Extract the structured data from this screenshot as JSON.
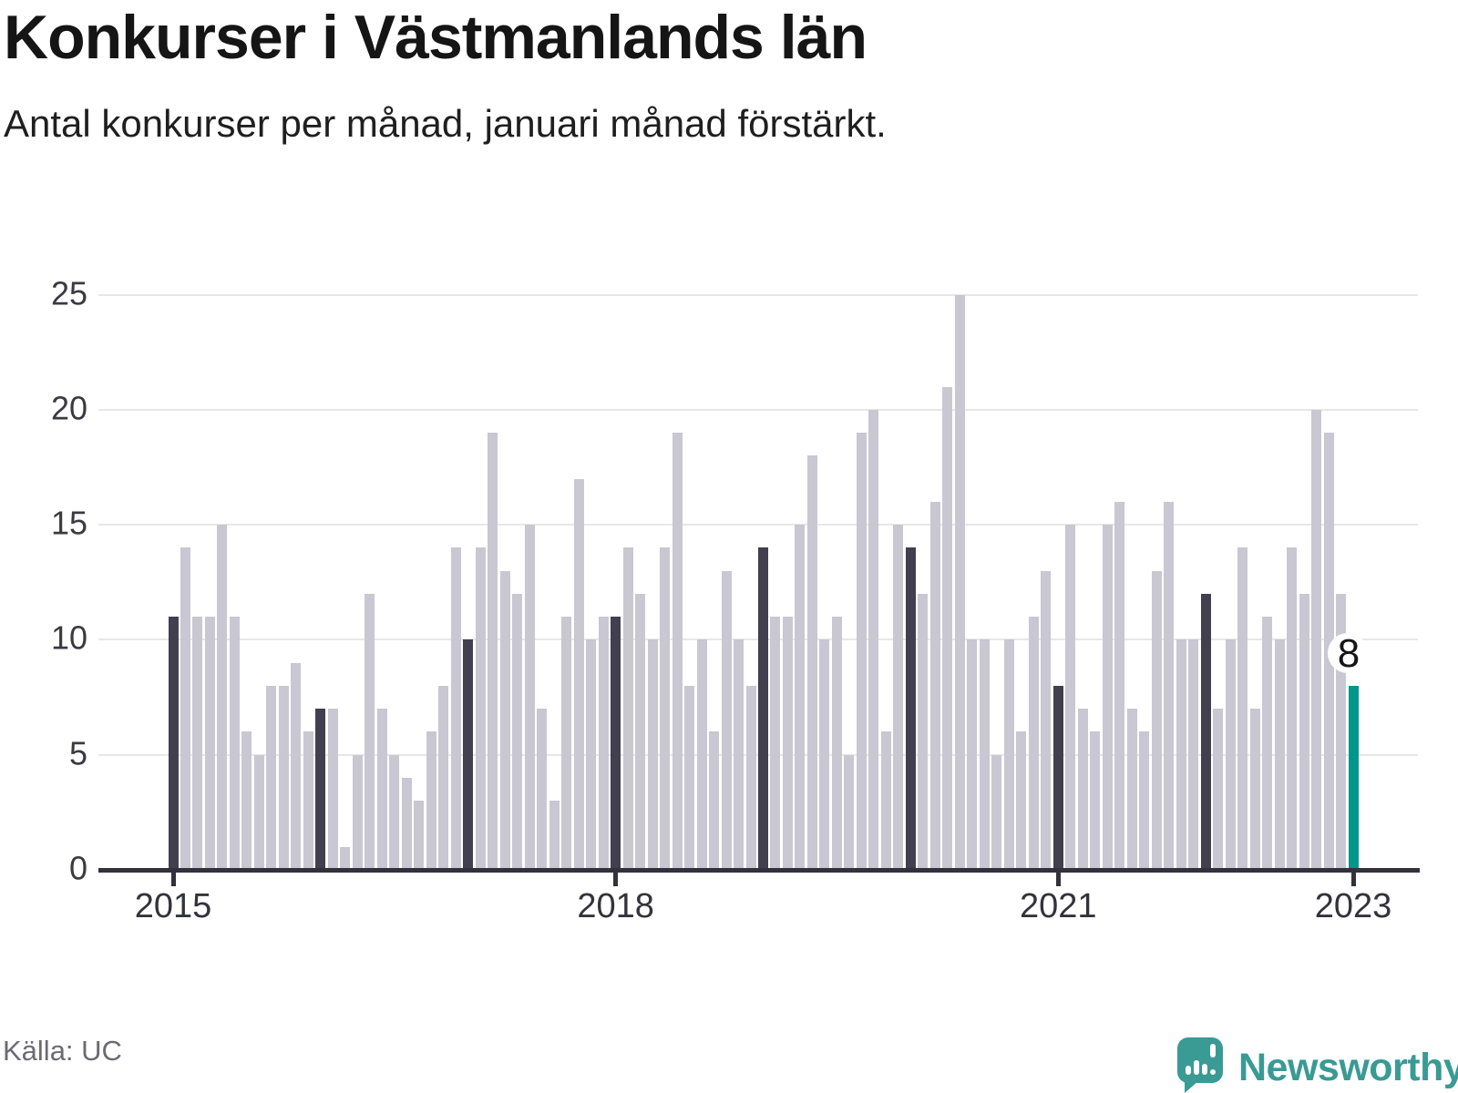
{
  "header": {
    "title": "Konkurser i Västmanlands län",
    "subtitle": "Antal konkurser per månad, januari månad förstärkt."
  },
  "footer": {
    "source": "Källa: UC",
    "brand": "Newsworthy"
  },
  "colors": {
    "bar_default": "#c9c7d2",
    "bar_january": "#42404f",
    "bar_latest": "#00968c",
    "axis_line": "#32313c",
    "gridline": "#e7e7e9",
    "brand_teal": "#3a9a94"
  },
  "chart_data": {
    "type": "bar",
    "title": "Konkurser i Västmanlands län",
    "subtitle": "Antal konkurser per månad, januari månad förstärkt.",
    "xlabel": "",
    "ylabel": "",
    "x_start_month": "2015-01",
    "x_end_month": "2023-01",
    "ylim": [
      0,
      25
    ],
    "yticks": [
      0,
      5,
      10,
      15,
      20,
      25
    ],
    "grid": "horizontal",
    "x_tick_labels": [
      "2015",
      "2018",
      "2021",
      "2023"
    ],
    "x_tick_month_indices": [
      0,
      36,
      72,
      96
    ],
    "highlight": {
      "january_bars": "dark",
      "latest_bar": "teal"
    },
    "annotation": {
      "month": "2023-01",
      "label": "8"
    },
    "series": [
      {
        "name": "Antal konkurser per månad",
        "year_values": {
          "2015": [
            11,
            14,
            11,
            11,
            15,
            11,
            6,
            5,
            8,
            8,
            9,
            6
          ],
          "2016": [
            7,
            7,
            1,
            5,
            12,
            7,
            5,
            4,
            3,
            6,
            8,
            14
          ],
          "2017": [
            10,
            14,
            19,
            13,
            12,
            15,
            7,
            3,
            11,
            17,
            10,
            11
          ],
          "2018": [
            11,
            14,
            12,
            10,
            14,
            19,
            8,
            10,
            6,
            13,
            10,
            8
          ],
          "2019": [
            14,
            11,
            11,
            15,
            18,
            10,
            11,
            5,
            19,
            20,
            6,
            15
          ],
          "2020": [
            14,
            12,
            16,
            21,
            25,
            10,
            10,
            5,
            10,
            6,
            11,
            13
          ],
          "2021": [
            8,
            15,
            7,
            6,
            15,
            16,
            7,
            6,
            13,
            16,
            10,
            10
          ],
          "2022": [
            12,
            7,
            10,
            14,
            7,
            11,
            10,
            14,
            12,
            20,
            19,
            12
          ],
          "2023": [
            8
          ]
        }
      }
    ]
  }
}
